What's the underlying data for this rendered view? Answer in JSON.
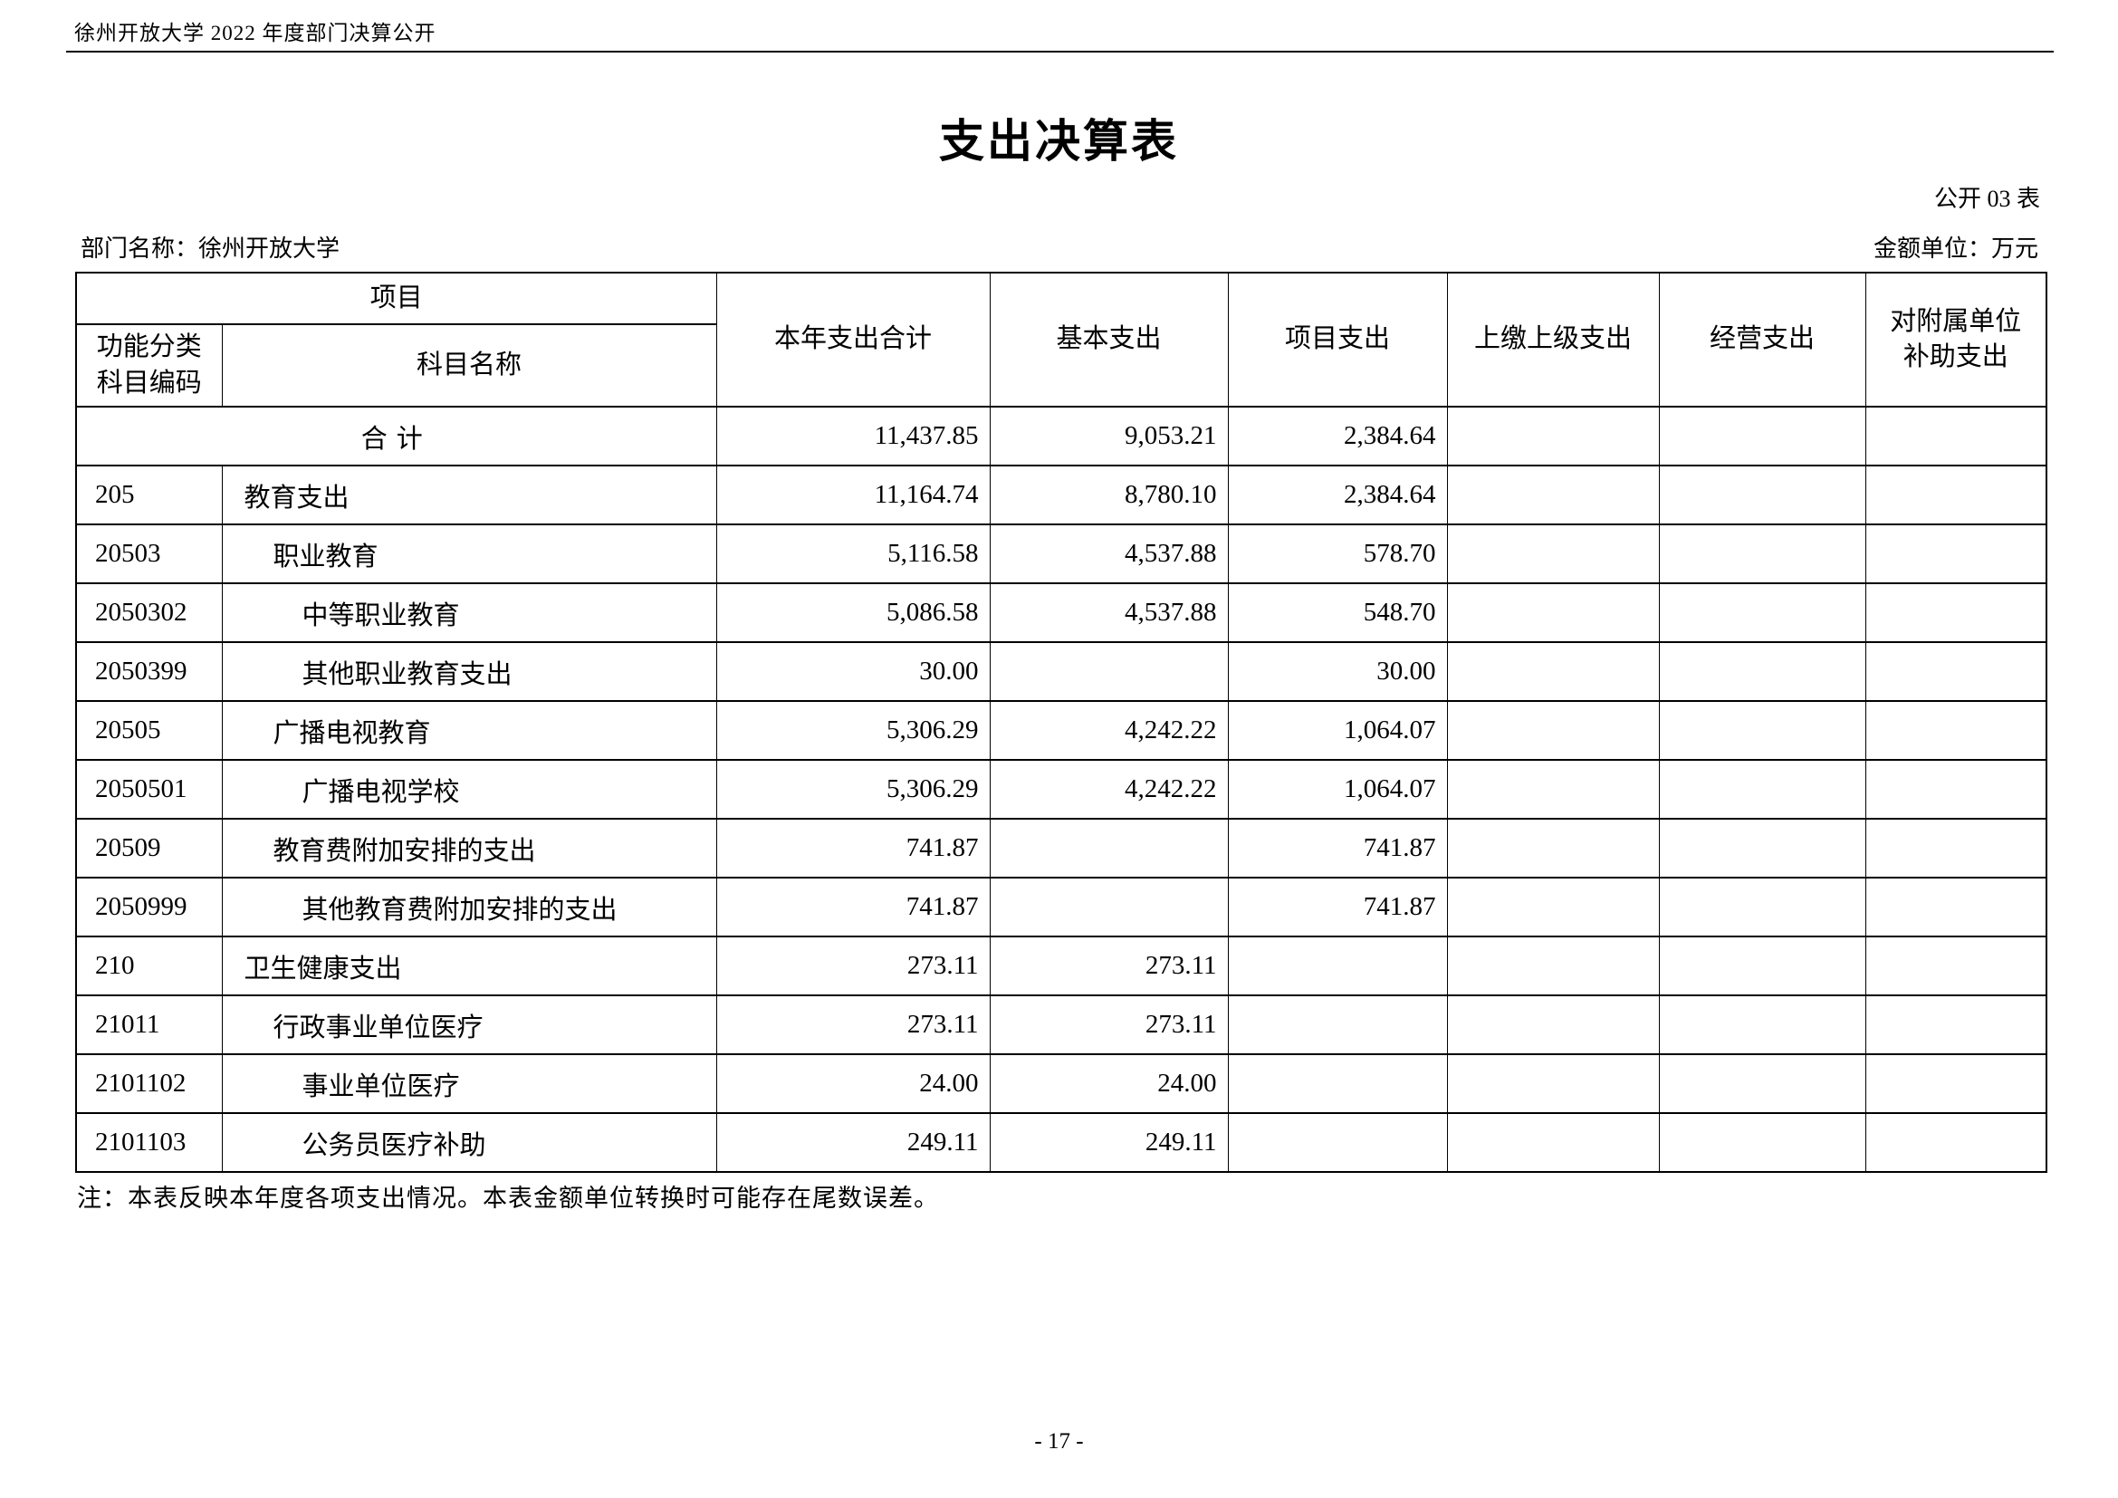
{
  "doc": {
    "top_header": "徐州开放大学 2022 年度部门决算公开",
    "title": "支出决算表",
    "table_code": "公开 03 表",
    "dept_label": "部门名称：徐州开放大学",
    "unit_label": "金额单位：万元",
    "note": "注：本表反映本年度各项支出情况。本表金额单位转换时可能存在尾数误差。",
    "page_number": "- 17 -"
  },
  "table": {
    "header": {
      "project_group": "项目",
      "code_line1": "功能分类",
      "code_line2": "科目编码",
      "subject_name": "科目名称",
      "columns": [
        "本年支出合计",
        "基本支出",
        "项目支出",
        "上缴上级支出",
        "经营支出"
      ],
      "last_column_lines": [
        "对附属单位",
        "补助支出"
      ],
      "last_column_full": "对附属单位补助支出"
    },
    "rows": [
      {
        "code": "",
        "name": "合计",
        "merged": true,
        "level": 0,
        "values": [
          "11,437.85",
          "9,053.21",
          "2,384.64",
          "",
          "",
          ""
        ]
      },
      {
        "code": "205",
        "name": "教育支出",
        "merged": false,
        "level": 1,
        "values": [
          "11,164.74",
          "8,780.10",
          "2,384.64",
          "",
          "",
          ""
        ]
      },
      {
        "code": "20503",
        "name": "职业教育",
        "merged": false,
        "level": 2,
        "values": [
          "5,116.58",
          "4,537.88",
          "578.70",
          "",
          "",
          ""
        ]
      },
      {
        "code": "2050302",
        "name": "中等职业教育",
        "merged": false,
        "level": 3,
        "values": [
          "5,086.58",
          "4,537.88",
          "548.70",
          "",
          "",
          ""
        ]
      },
      {
        "code": "2050399",
        "name": "其他职业教育支出",
        "merged": false,
        "level": 3,
        "values": [
          "30.00",
          "",
          "30.00",
          "",
          "",
          ""
        ]
      },
      {
        "code": "20505",
        "name": "广播电视教育",
        "merged": false,
        "level": 2,
        "values": [
          "5,306.29",
          "4,242.22",
          "1,064.07",
          "",
          "",
          ""
        ]
      },
      {
        "code": "2050501",
        "name": "广播电视学校",
        "merged": false,
        "level": 3,
        "values": [
          "5,306.29",
          "4,242.22",
          "1,064.07",
          "",
          "",
          ""
        ]
      },
      {
        "code": "20509",
        "name": "教育费附加安排的支出",
        "merged": false,
        "level": 2,
        "values": [
          "741.87",
          "",
          "741.87",
          "",
          "",
          ""
        ]
      },
      {
        "code": "2050999",
        "name": "其他教育费附加安排的支出",
        "merged": false,
        "level": 3,
        "values": [
          "741.87",
          "",
          "741.87",
          "",
          "",
          ""
        ]
      },
      {
        "code": "210",
        "name": "卫生健康支出",
        "merged": false,
        "level": 1,
        "values": [
          "273.11",
          "273.11",
          "",
          "",
          "",
          ""
        ]
      },
      {
        "code": "21011",
        "name": "行政事业单位医疗",
        "merged": false,
        "level": 2,
        "values": [
          "273.11",
          "273.11",
          "",
          "",
          "",
          ""
        ]
      },
      {
        "code": "2101102",
        "name": "事业单位医疗",
        "merged": false,
        "level": 3,
        "values": [
          "24.00",
          "24.00",
          "",
          "",
          "",
          ""
        ]
      },
      {
        "code": "2101103",
        "name": "公务员医疗补助",
        "merged": false,
        "level": 3,
        "values": [
          "249.11",
          "249.11",
          "",
          "",
          "",
          ""
        ]
      }
    ]
  }
}
